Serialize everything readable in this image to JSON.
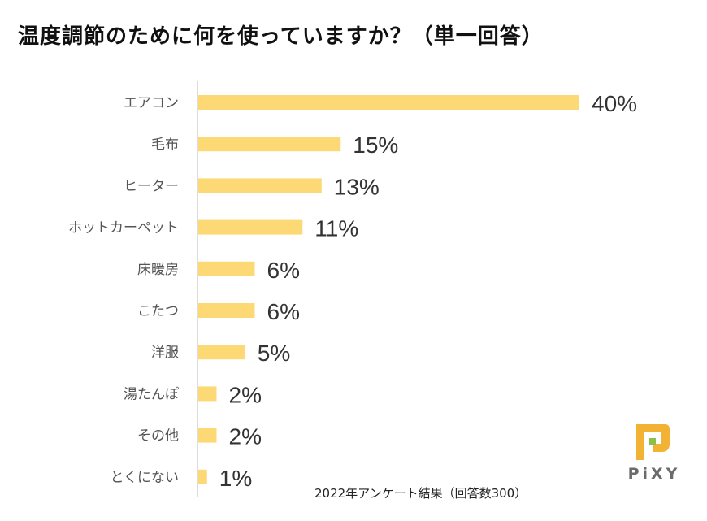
{
  "title": "温度調節のために何を使っていますか？（単一回答）",
  "note": "2022年アンケート結果（回答数300）",
  "logo": {
    "text": "PiXY",
    "colors": {
      "main": "#F2B233",
      "accent": "#8DC04A"
    }
  },
  "chart_data": {
    "type": "bar",
    "orientation": "horizontal",
    "title": "温度調節のために何を使っていますか？（単一回答）",
    "categories": [
      "エアコン",
      "毛布",
      "ヒーター",
      "ホットカーペット",
      "床暖房",
      "こたつ",
      "洋服",
      "湯たんぽ",
      "その他",
      "とくにない"
    ],
    "values": [
      40,
      15,
      13,
      11,
      6,
      6,
      5,
      2,
      2,
      1
    ],
    "value_labels": [
      "40%",
      "15%",
      "13%",
      "11%",
      "6%",
      "6%",
      "5%",
      "2%",
      "2%",
      "1%"
    ],
    "unit": "%",
    "xlim": [
      0,
      40
    ],
    "grid": false,
    "legend": "none",
    "bar_color": "#FCD974",
    "axis_color": "#D0D0D0"
  }
}
